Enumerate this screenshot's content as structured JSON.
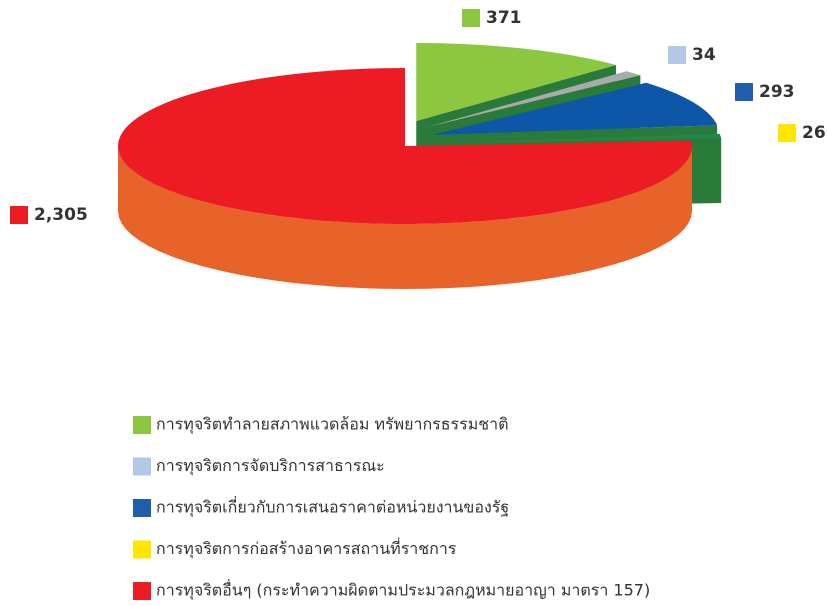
{
  "chart_data": {
    "type": "pie",
    "categories": [
      "การทุจริตทำลายสภาพแวดล้อม ทรัพยากรธรรมชาติ",
      "การทุจริตการจัดบริการสาธารณะ",
      "การทุจริตเกี่ยวกับการเสนอราคาต่อหน่วยงานของรัฐ",
      "การทุจริตการก่อสร้างอาคารสถานที่ราชการ",
      "การทุจริตอื่นๆ (กระทำความผิดตามประมวลกฎหมายอาญา มาตรา 157)"
    ],
    "values": [
      371,
      34,
      293,
      26,
      2305
    ],
    "value_labels": [
      "371",
      "34",
      "293",
      "26",
      "2,305"
    ],
    "colors": [
      "#8dc63f",
      "#b4c7e7",
      "#1f5fae",
      "#ffe600",
      "#ed1c24"
    ]
  }
}
